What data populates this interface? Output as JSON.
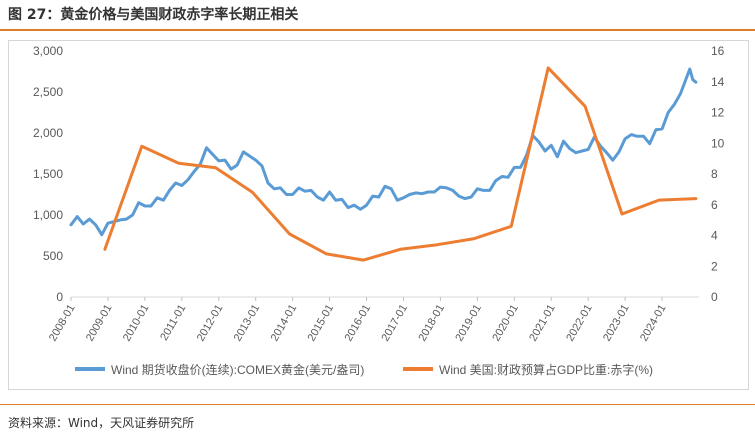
{
  "figure": {
    "title": "图 27：黄金价格与美国财政赤字率长期正相关",
    "source": "资料来源：Wind，天风证券研究所"
  },
  "colors": {
    "gold_series": "#5b9bd5",
    "deficit_series": "#ed7d31",
    "accent_rule": "#e07b2a",
    "axis_text": "#595959",
    "frame": "#d6d6d6"
  },
  "chart_data": {
    "type": "line",
    "title": "",
    "xlabel": "",
    "ylabel": "",
    "y2label": "",
    "grid": false,
    "legend_position": "bottom",
    "x_ticks": [
      "2008-01",
      "2009-01",
      "2010-01",
      "2011-01",
      "2012-01",
      "2013-01",
      "2014-01",
      "2015-01",
      "2016-01",
      "2017-01",
      "2018-01",
      "2019-01",
      "2020-01",
      "2021-01",
      "2022-01",
      "2023-01",
      "2024-01"
    ],
    "y_left": {
      "min": 0,
      "max": 3000,
      "ticks": [
        "0",
        "500",
        "1,000",
        "1,500",
        "2,000",
        "2,500",
        "3,000"
      ]
    },
    "y_right": {
      "min": 0,
      "max": 16,
      "ticks": [
        "0",
        "2",
        "4",
        "6",
        "8",
        "10",
        "12",
        "14",
        "16"
      ]
    },
    "series": [
      {
        "name": "Wind 期货收盘价(连续):COMEX黄金(美元/盎司)",
        "axis": "left",
        "points": [
          [
            "2008-01",
            880
          ],
          [
            "2008-03",
            980
          ],
          [
            "2008-05",
            890
          ],
          [
            "2008-07",
            950
          ],
          [
            "2008-09",
            880
          ],
          [
            "2008-11",
            760
          ],
          [
            "2009-01",
            900
          ],
          [
            "2009-03",
            920
          ],
          [
            "2009-05",
            940
          ],
          [
            "2009-07",
            950
          ],
          [
            "2009-09",
            1000
          ],
          [
            "2009-11",
            1150
          ],
          [
            "2010-01",
            1110
          ],
          [
            "2010-03",
            1110
          ],
          [
            "2010-05",
            1210
          ],
          [
            "2010-07",
            1180
          ],
          [
            "2010-09",
            1300
          ],
          [
            "2010-11",
            1390
          ],
          [
            "2011-01",
            1360
          ],
          [
            "2011-03",
            1430
          ],
          [
            "2011-05",
            1530
          ],
          [
            "2011-07",
            1620
          ],
          [
            "2011-09",
            1820
          ],
          [
            "2011-11",
            1740
          ],
          [
            "2012-01",
            1660
          ],
          [
            "2012-03",
            1670
          ],
          [
            "2012-05",
            1560
          ],
          [
            "2012-07",
            1610
          ],
          [
            "2012-09",
            1770
          ],
          [
            "2012-11",
            1720
          ],
          [
            "2013-01",
            1670
          ],
          [
            "2013-03",
            1600
          ],
          [
            "2013-05",
            1390
          ],
          [
            "2013-07",
            1320
          ],
          [
            "2013-09",
            1330
          ],
          [
            "2013-11",
            1250
          ],
          [
            "2014-01",
            1250
          ],
          [
            "2014-03",
            1330
          ],
          [
            "2014-05",
            1290
          ],
          [
            "2014-07",
            1300
          ],
          [
            "2014-09",
            1220
          ],
          [
            "2014-11",
            1180
          ],
          [
            "2015-01",
            1280
          ],
          [
            "2015-03",
            1180
          ],
          [
            "2015-05",
            1190
          ],
          [
            "2015-07",
            1090
          ],
          [
            "2015-09",
            1120
          ],
          [
            "2015-11",
            1070
          ],
          [
            "2016-01",
            1120
          ],
          [
            "2016-03",
            1230
          ],
          [
            "2016-05",
            1220
          ],
          [
            "2016-07",
            1350
          ],
          [
            "2016-09",
            1320
          ],
          [
            "2016-11",
            1180
          ],
          [
            "2017-01",
            1210
          ],
          [
            "2017-03",
            1250
          ],
          [
            "2017-05",
            1270
          ],
          [
            "2017-07",
            1260
          ],
          [
            "2017-09",
            1280
          ],
          [
            "2017-11",
            1280
          ],
          [
            "2018-01",
            1340
          ],
          [
            "2018-03",
            1330
          ],
          [
            "2018-05",
            1300
          ],
          [
            "2018-07",
            1230
          ],
          [
            "2018-09",
            1200
          ],
          [
            "2018-11",
            1220
          ],
          [
            "2019-01",
            1320
          ],
          [
            "2019-03",
            1300
          ],
          [
            "2019-05",
            1300
          ],
          [
            "2019-07",
            1420
          ],
          [
            "2019-09",
            1470
          ],
          [
            "2019-11",
            1460
          ],
          [
            "2020-01",
            1580
          ],
          [
            "2020-03",
            1580
          ],
          [
            "2020-05",
            1730
          ],
          [
            "2020-07",
            1970
          ],
          [
            "2020-09",
            1890
          ],
          [
            "2020-11",
            1780
          ],
          [
            "2021-01",
            1850
          ],
          [
            "2021-03",
            1710
          ],
          [
            "2021-05",
            1900
          ],
          [
            "2021-07",
            1810
          ],
          [
            "2021-09",
            1760
          ],
          [
            "2021-11",
            1780
          ],
          [
            "2022-01",
            1800
          ],
          [
            "2022-03",
            1950
          ],
          [
            "2022-05",
            1840
          ],
          [
            "2022-07",
            1760
          ],
          [
            "2022-09",
            1670
          ],
          [
            "2022-11",
            1770
          ],
          [
            "2023-01",
            1930
          ],
          [
            "2023-03",
            1980
          ],
          [
            "2023-05",
            1960
          ],
          [
            "2023-07",
            1960
          ],
          [
            "2023-09",
            1870
          ],
          [
            "2023-11",
            2040
          ],
          [
            "2024-01",
            2050
          ],
          [
            "2024-03",
            2250
          ],
          [
            "2024-05",
            2350
          ],
          [
            "2024-07",
            2480
          ],
          [
            "2024-09",
            2680
          ],
          [
            "2024-10",
            2780
          ],
          [
            "2024-11",
            2650
          ],
          [
            "2024-12",
            2620
          ]
        ]
      },
      {
        "name": "Wind 美国:财政预算占GDP比重:赤字(%)",
        "axis": "right",
        "points": [
          [
            "2008-12",
            3.1
          ],
          [
            "2009-12",
            9.8
          ],
          [
            "2010-12",
            8.7
          ],
          [
            "2011-12",
            8.4
          ],
          [
            "2012-12",
            6.8
          ],
          [
            "2013-12",
            4.1
          ],
          [
            "2014-12",
            2.8
          ],
          [
            "2015-12",
            2.4
          ],
          [
            "2016-12",
            3.1
          ],
          [
            "2017-12",
            3.4
          ],
          [
            "2018-12",
            3.8
          ],
          [
            "2019-12",
            4.6
          ],
          [
            "2020-12",
            14.9
          ],
          [
            "2021-12",
            12.4
          ],
          [
            "2022-12",
            5.4
          ],
          [
            "2023-12",
            6.3
          ],
          [
            "2024-12",
            6.4
          ]
        ]
      }
    ]
  }
}
